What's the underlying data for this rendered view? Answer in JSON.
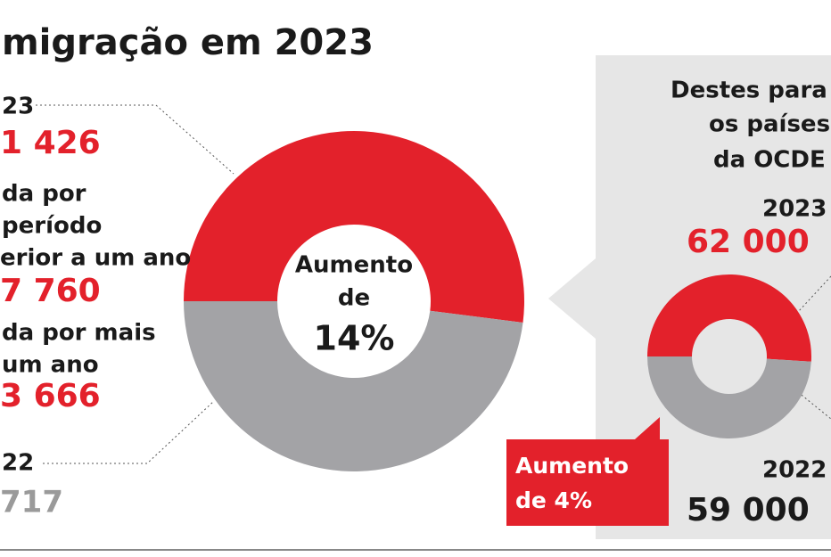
{
  "title": "migração em 2023",
  "left": {
    "y2023": "23",
    "total2023": "1 426",
    "temp": [
      "da por",
      "período",
      "erior a um ano"
    ],
    "temp_value": "7 760",
    "perm": [
      "da por mais",
      "um ano"
    ],
    "perm_value": "3 666",
    "y2022": "22",
    "total2022": "717"
  },
  "center": [
    "Aumento",
    "de",
    "14%"
  ],
  "panel": {
    "heading": [
      "Destes para",
      "os países",
      "da OCDE"
    ],
    "y2023": "2023",
    "v2023": "62 000",
    "y2022": "2022",
    "v2022": "59 000",
    "badge": [
      "Aumento",
      "de 4%"
    ]
  },
  "donuts": [
    {
      "values": [
        52,
        48
      ],
      "colors": [
        "#e3212b",
        "#a3a3a6"
      ]
    },
    {
      "values": [
        51,
        49
      ],
      "colors": [
        "#e3212b",
        "#a3a3a6"
      ]
    }
  ]
}
